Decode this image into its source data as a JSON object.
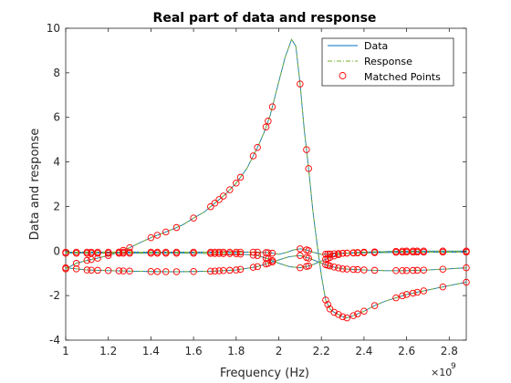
{
  "chart_data": {
    "type": "line",
    "title": "Real part of data and response",
    "xlabel": "Frequency (Hz)",
    "ylabel": "Data and response",
    "x_exponent_label": "×10",
    "x_exponent_power": "9",
    "xlim": [
      1.0,
      2.88
    ],
    "ylim": [
      -4,
      10
    ],
    "x_ticks": [
      1.0,
      1.2,
      1.4,
      1.6,
      1.8,
      2.0,
      2.2,
      2.4,
      2.6,
      2.8
    ],
    "x_tick_labels": [
      "1",
      "1.2",
      "1.4",
      "1.6",
      "1.8",
      "2",
      "2.2",
      "2.4",
      "2.6",
      "2.8"
    ],
    "y_ticks": [
      -4,
      -2,
      0,
      2,
      4,
      6,
      8,
      10
    ],
    "y_tick_labels": [
      "-4",
      "-2",
      "0",
      "2",
      "4",
      "6",
      "8",
      "10"
    ],
    "grid": false,
    "legend": {
      "position": "top-right",
      "entries": [
        {
          "label": "Data",
          "style": "solid-line",
          "color": "#0072bd"
        },
        {
          "label": "Response",
          "style": "dash-dot-line",
          "color": "#77ac30"
        },
        {
          "label": "Matched Points",
          "style": "circle-marker",
          "color": "#ff0000"
        }
      ]
    },
    "colors": {
      "data": "#0072bd",
      "response": "#77ac30",
      "points": "#ff0000"
    },
    "series": [
      {
        "name": "Data",
        "curves": [
          [
            [
              1.0,
              -0.8
            ],
            [
              1.05,
              -0.55
            ],
            [
              1.1,
              -0.42
            ],
            [
              1.15,
              -0.32
            ],
            [
              1.2,
              -0.2
            ],
            [
              1.25,
              -0.05
            ],
            [
              1.3,
              0.15
            ],
            [
              1.35,
              0.38
            ],
            [
              1.4,
              0.6
            ],
            [
              1.45,
              0.78
            ],
            [
              1.5,
              0.97
            ],
            [
              1.55,
              1.18
            ],
            [
              1.6,
              1.48
            ],
            [
              1.65,
              1.75
            ],
            [
              1.7,
              2.15
            ],
            [
              1.75,
              2.55
            ],
            [
              1.8,
              3.05
            ],
            [
              1.85,
              3.7
            ],
            [
              1.9,
              4.65
            ],
            [
              1.93,
              5.3
            ],
            [
              1.96,
              6.1
            ],
            [
              1.98,
              6.85
            ],
            [
              2.0,
              7.6
            ],
            [
              2.03,
              8.7
            ],
            [
              2.06,
              9.5
            ],
            [
              2.08,
              9.2
            ],
            [
              2.1,
              7.5
            ],
            [
              2.12,
              5.4
            ],
            [
              2.14,
              3.7
            ],
            [
              2.16,
              1.8
            ],
            [
              2.18,
              0.3
            ],
            [
              2.2,
              -1.1
            ],
            [
              2.22,
              -2.2
            ],
            [
              2.24,
              -2.6
            ],
            [
              2.26,
              -2.75
            ],
            [
              2.28,
              -2.85
            ],
            [
              2.3,
              -2.95
            ],
            [
              2.32,
              -3.0
            ],
            [
              2.35,
              -2.9
            ],
            [
              2.4,
              -2.7
            ],
            [
              2.45,
              -2.45
            ],
            [
              2.5,
              -2.25
            ],
            [
              2.55,
              -2.1
            ],
            [
              2.6,
              -1.95
            ],
            [
              2.65,
              -1.85
            ],
            [
              2.7,
              -1.75
            ],
            [
              2.75,
              -1.65
            ],
            [
              2.8,
              -1.55
            ],
            [
              2.88,
              -1.4
            ]
          ],
          [
            [
              1.0,
              -0.05
            ],
            [
              1.2,
              -0.05
            ],
            [
              1.4,
              -0.05
            ],
            [
              1.6,
              -0.05
            ],
            [
              1.8,
              -0.05
            ],
            [
              1.9,
              -0.05
            ],
            [
              1.96,
              -0.08
            ],
            [
              2.0,
              -0.15
            ],
            [
              2.04,
              -0.05
            ],
            [
              2.07,
              0.05
            ],
            [
              2.1,
              0.1
            ],
            [
              2.13,
              0.05
            ],
            [
              2.16,
              -0.05
            ],
            [
              2.2,
              -0.15
            ],
            [
              2.3,
              -0.1
            ],
            [
              2.4,
              -0.08
            ],
            [
              2.6,
              -0.05
            ],
            [
              2.88,
              -0.05
            ]
          ],
          [
            [
              1.0,
              -0.1
            ],
            [
              1.2,
              -0.1
            ],
            [
              1.4,
              -0.1
            ],
            [
              1.6,
              -0.1
            ],
            [
              1.8,
              -0.12
            ],
            [
              1.9,
              -0.2
            ],
            [
              1.95,
              -0.35
            ],
            [
              2.0,
              -0.55
            ],
            [
              2.05,
              -0.7
            ],
            [
              2.1,
              -0.75
            ],
            [
              2.15,
              -0.65
            ],
            [
              2.2,
              -0.45
            ],
            [
              2.25,
              -0.25
            ],
            [
              2.3,
              -0.1
            ],
            [
              2.4,
              -0.05
            ],
            [
              2.6,
              0.0
            ],
            [
              2.88,
              0.0
            ]
          ],
          [
            [
              1.0,
              -0.75
            ],
            [
              1.1,
              -0.85
            ],
            [
              1.2,
              -0.88
            ],
            [
              1.3,
              -0.9
            ],
            [
              1.4,
              -0.92
            ],
            [
              1.5,
              -0.93
            ],
            [
              1.6,
              -0.92
            ],
            [
              1.7,
              -0.9
            ],
            [
              1.8,
              -0.85
            ],
            [
              1.9,
              -0.7
            ],
            [
              1.95,
              -0.55
            ],
            [
              2.0,
              -0.4
            ],
            [
              2.05,
              -0.25
            ],
            [
              2.1,
              -0.2
            ],
            [
              2.15,
              -0.35
            ],
            [
              2.2,
              -0.55
            ],
            [
              2.25,
              -0.7
            ],
            [
              2.3,
              -0.8
            ],
            [
              2.4,
              -0.85
            ],
            [
              2.5,
              -0.88
            ],
            [
              2.6,
              -0.88
            ],
            [
              2.7,
              -0.85
            ],
            [
              2.8,
              -0.8
            ],
            [
              2.88,
              -0.75
            ]
          ]
        ]
      },
      {
        "name": "Response",
        "curves": "same-as-Data"
      },
      {
        "name": "Matched Points",
        "x": [
          1.0,
          1.05,
          1.1,
          1.12,
          1.15,
          1.2,
          1.25,
          1.27,
          1.3,
          1.4,
          1.43,
          1.47,
          1.52,
          1.6,
          1.68,
          1.7,
          1.72,
          1.74,
          1.77,
          1.8,
          1.82,
          1.88,
          1.9,
          1.94,
          1.95,
          1.97,
          2.1,
          2.13,
          2.14,
          2.22,
          2.23,
          2.24,
          2.26,
          2.28,
          2.3,
          2.32,
          2.35,
          2.37,
          2.4,
          2.45,
          2.55,
          2.58,
          2.6,
          2.63,
          2.65,
          2.68,
          2.77,
          2.88
        ]
      }
    ]
  }
}
